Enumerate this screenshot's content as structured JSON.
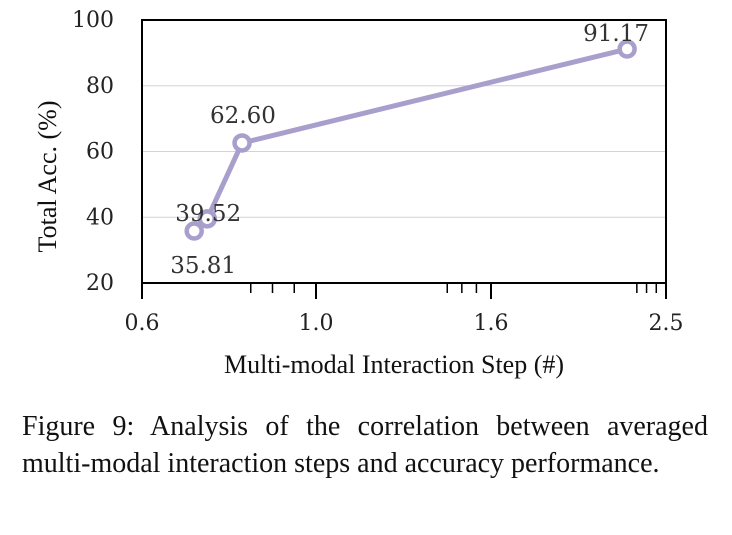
{
  "chart_data": {
    "type": "line",
    "title": "",
    "xlabel": "Multi-modal Interaction Step (#)",
    "ylabel": "Total Acc. (%)",
    "xlim": [
      0.6,
      2.5
    ],
    "ylim": [
      20,
      100
    ],
    "xticks": [
      "0.6",
      "1.0",
      "1.6",
      "2.5"
    ],
    "yticks": [
      "20",
      "40",
      "60",
      "80",
      "100"
    ],
    "grid": true,
    "series": [
      {
        "color": "#a99fcc",
        "points": [
          {
            "x": 0.72,
            "y": 35.81,
            "label": "35.81"
          },
          {
            "x": 0.75,
            "y": 39.52,
            "label": "39.52"
          },
          {
            "x": 0.83,
            "y": 62.6,
            "label": "62.60"
          },
          {
            "x": 2.3,
            "y": 91.17,
            "label": "91.17"
          }
        ]
      }
    ]
  },
  "caption": "Figure 9: Analysis of the correlation between averaged multi-modal interaction steps and accuracy performance."
}
